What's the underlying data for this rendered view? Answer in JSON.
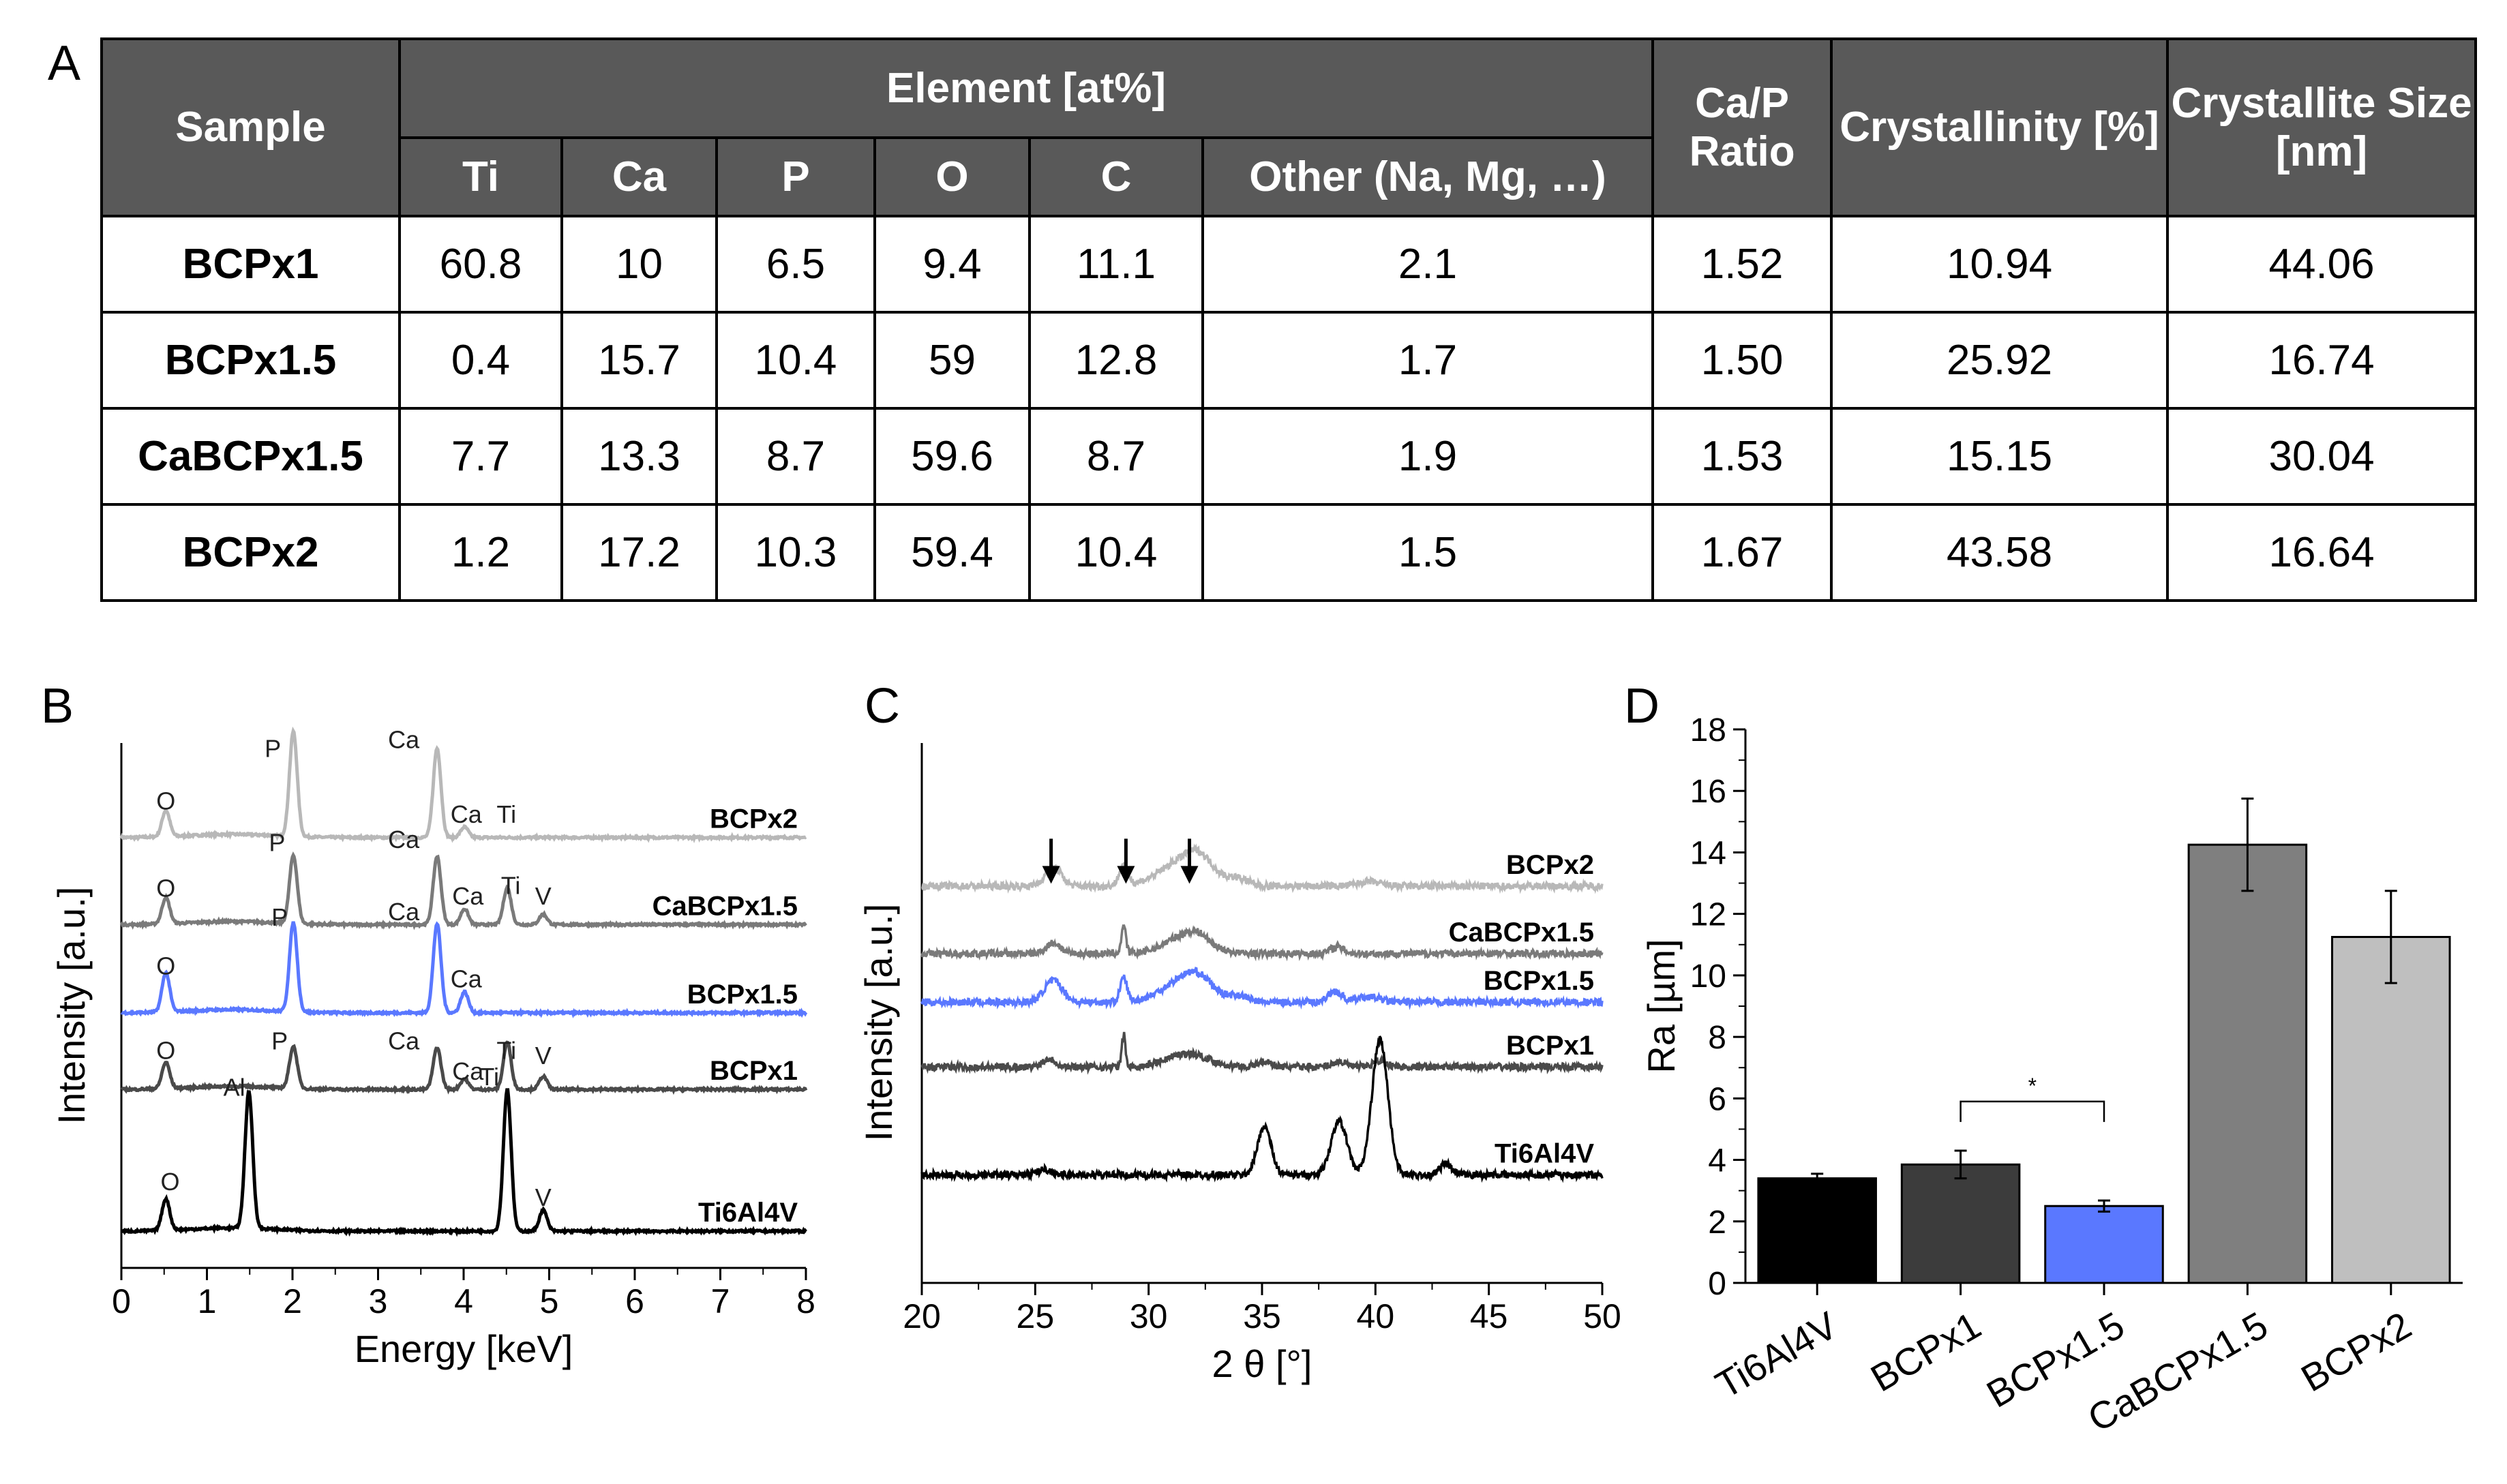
{
  "panels": {
    "a": "A",
    "b": "B",
    "c": "C",
    "d": "D"
  },
  "table": {
    "headers": {
      "sample": "Sample",
      "element": "Element [at%]",
      "elements": [
        "Ti",
        "Ca",
        "P",
        "O",
        "C",
        "Other (Na, Mg, …)"
      ],
      "ca_p": "Ca/P Ratio",
      "crystallinity": "Crystallinity [%]",
      "crystallite": "Crystallite Size [nm]"
    },
    "rows": [
      {
        "sample": "BCPx1",
        "cells": [
          "60.8",
          "10",
          "6.5",
          "9.4",
          "11.1",
          "2.1",
          "1.52",
          "10.94",
          "44.06"
        ]
      },
      {
        "sample": "BCPx1.5",
        "cells": [
          "0.4",
          "15.7",
          "10.4",
          "59",
          "12.8",
          "1.7",
          "1.50",
          "25.92",
          "16.74"
        ]
      },
      {
        "sample": "CaBCPx1.5",
        "cells": [
          "7.7",
          "13.3",
          "8.7",
          "59.6",
          "8.7",
          "1.9",
          "1.53",
          "15.15",
          "30.04"
        ]
      },
      {
        "sample": "BCPx2",
        "cells": [
          "1.2",
          "17.2",
          "10.3",
          "59.4",
          "10.4",
          "1.5",
          "1.67",
          "43.58",
          "16.64"
        ]
      }
    ]
  },
  "chart_data": [
    {
      "id": "B",
      "type": "line",
      "title": "",
      "xlabel": "Energy [keV]",
      "ylabel": "Intensity [a.u.]",
      "xlim": [
        0,
        8
      ],
      "xticks": [
        "0",
        "1",
        "2",
        "3",
        "4",
        "5",
        "6",
        "7",
        "8"
      ],
      "series": [
        {
          "name": "BCPx2",
          "color": "#b8b8b8",
          "baseline": 0.82,
          "peaks": [
            [
              0.52,
              0.05
            ],
            [
              2.01,
              0.2
            ],
            [
              3.69,
              0.17
            ],
            [
              4.01,
              0.02
            ]
          ],
          "labels": [
            {
              "text": "O",
              "x": 0.52,
              "h": 0.035
            },
            {
              "text": "P",
              "x": 1.77,
              "h": 0.135
            },
            {
              "text": "Ca",
              "x": 3.3,
              "h": 0.152
            },
            {
              "text": "Ca",
              "x": 4.03,
              "h": 0.01
            },
            {
              "text": "Ti",
              "x": 4.5,
              "h": 0.01
            }
          ]
        },
        {
          "name": "CaBCPx1.5",
          "color": "#7a7a7a",
          "baseline": 0.654,
          "peaks": [
            [
              0.52,
              0.05
            ],
            [
              2.01,
              0.13
            ],
            [
              3.69,
              0.13
            ],
            [
              4.01,
              0.03
            ],
            [
              4.51,
              0.07
            ],
            [
              4.93,
              0.02
            ]
          ],
          "labels": [
            {
              "text": "O",
              "x": 0.52,
              "h": 0.035
            },
            {
              "text": "P",
              "x": 1.82,
              "h": 0.122
            },
            {
              "text": "Ca",
              "x": 3.3,
              "h": 0.128
            },
            {
              "text": "Ca",
              "x": 4.05,
              "h": 0.02
            },
            {
              "text": "Ti",
              "x": 4.55,
              "h": 0.04
            },
            {
              "text": "V",
              "x": 4.93,
              "h": 0.02
            }
          ]
        },
        {
          "name": "BCPx1.5",
          "color": "#5a78ff",
          "baseline": 0.486,
          "peaks": [
            [
              0.52,
              0.075
            ],
            [
              2.01,
              0.17
            ],
            [
              3.69,
              0.17
            ],
            [
              4.01,
              0.04
            ]
          ],
          "labels": [
            {
              "text": "O",
              "x": 0.52,
              "h": 0.055
            },
            {
              "text": "P",
              "x": 1.85,
              "h": 0.148
            },
            {
              "text": "Ca",
              "x": 3.3,
              "h": 0.158
            },
            {
              "text": "Ca",
              "x": 4.03,
              "h": 0.03
            }
          ]
        },
        {
          "name": "BCPx1",
          "color": "#4a4a4a",
          "baseline": 0.34,
          "peaks": [
            [
              0.52,
              0.05
            ],
            [
              2.01,
              0.08
            ],
            [
              3.69,
              0.08
            ],
            [
              4.01,
              0.02
            ],
            [
              4.51,
              0.09
            ],
            [
              4.93,
              0.025
            ]
          ],
          "labels": [
            {
              "text": "O",
              "x": 0.52,
              "h": 0.04
            },
            {
              "text": "P",
              "x": 1.85,
              "h": 0.058
            },
            {
              "text": "Ca",
              "x": 3.3,
              "h": 0.058
            },
            {
              "text": "Ca",
              "x": 4.05,
              "h": 0.0
            },
            {
              "text": "Ti",
              "x": 4.5,
              "h": 0.04
            },
            {
              "text": "V",
              "x": 4.93,
              "h": 0.03
            }
          ]
        },
        {
          "name": "Ti6Al4V",
          "color": "#000000",
          "baseline": 0.07,
          "peaks": [
            [
              0.52,
              0.06
            ],
            [
              1.49,
              0.26
            ],
            [
              4.51,
              0.27
            ],
            [
              4.93,
              0.04
            ]
          ],
          "labels": [
            {
              "text": "O",
              "x": 0.57,
              "h": 0.06
            },
            {
              "text": "Al",
              "x": 1.32,
              "h": 0.24
            },
            {
              "text": "Ti",
              "x": 4.3,
              "h": 0.26
            },
            {
              "text": "V",
              "x": 4.93,
              "h": 0.03
            }
          ]
        }
      ]
    },
    {
      "id": "C",
      "type": "line",
      "title": "",
      "xlabel": "2 θ [°]",
      "ylabel": "Intensity [a.u.]",
      "xlim": [
        20,
        50
      ],
      "xticks": [
        "20",
        "25",
        "30",
        "35",
        "40",
        "45",
        "50"
      ],
      "arrows_at": [
        25.7,
        29.0,
        31.8
      ],
      "series": [
        {
          "name": "BCPx2",
          "color": "#b8b8b8",
          "baseline": 0.735,
          "peaks": [
            [
              25.8,
              0.035,
              0.35
            ],
            [
              28.9,
              0.035,
              0.2
            ],
            [
              31.7,
              0.05,
              1.1
            ],
            [
              32.2,
              0.02,
              0.5
            ],
            [
              34.0,
              0.01,
              0.4
            ],
            [
              39.7,
              0.008,
              0.5
            ]
          ]
        },
        {
          "name": "CaBCPx1.5",
          "color": "#7a7a7a",
          "baseline": 0.61,
          "peaks": [
            [
              25.8,
              0.02,
              0.3
            ],
            [
              28.9,
              0.05,
              0.1
            ],
            [
              31.7,
              0.035,
              0.9
            ],
            [
              32.2,
              0.01,
              0.4
            ],
            [
              38.3,
              0.012,
              0.3
            ]
          ]
        },
        {
          "name": "BCPx1.5",
          "color": "#5a78ff",
          "baseline": 0.52,
          "peaks": [
            [
              25.8,
              0.04,
              0.4
            ],
            [
              28.9,
              0.045,
              0.15
            ],
            [
              31.7,
              0.045,
              1.0
            ],
            [
              32.2,
              0.015,
              0.5
            ],
            [
              34.0,
              0.01,
              0.4
            ],
            [
              38.2,
              0.02,
              0.3
            ],
            [
              39.7,
              0.01,
              0.5
            ]
          ]
        },
        {
          "name": "BCPx1",
          "color": "#4a4a4a",
          "baseline": 0.4,
          "peaks": [
            [
              25.6,
              0.015,
              0.3
            ],
            [
              28.9,
              0.06,
              0.08
            ],
            [
              31.7,
              0.025,
              0.9
            ],
            [
              35.1,
              0.01,
              0.3
            ],
            [
              38.4,
              0.01,
              0.3
            ],
            [
              40.2,
              0.012,
              0.3
            ]
          ]
        },
        {
          "name": "Ti6Al4V",
          "color": "#000000",
          "baseline": 0.2,
          "peaks": [
            [
              25.4,
              0.01,
              0.3
            ],
            [
              35.1,
              0.09,
              0.3
            ],
            [
              38.4,
              0.1,
              0.35
            ],
            [
              40.2,
              0.25,
              0.35
            ],
            [
              43.1,
              0.02,
              0.25
            ]
          ]
        }
      ]
    },
    {
      "id": "D",
      "type": "bar",
      "title": "",
      "xlabel": "",
      "ylabel": "Ra [µm]",
      "ylim": [
        0,
        18
      ],
      "yticks": [
        "0",
        "2",
        "4",
        "6",
        "8",
        "10",
        "12",
        "14",
        "16",
        "18"
      ],
      "categories": [
        "Ti6Al4V",
        "BCPx1",
        "BCPx1.5",
        "CaBCPx1.5",
        "BCPx2"
      ],
      "values": [
        3.4,
        3.85,
        2.5,
        14.25,
        11.25
      ],
      "errors": [
        0.15,
        0.45,
        0.18,
        1.5,
        1.5
      ],
      "colors": [
        "#000000",
        "#3c3c3c",
        "#5a78ff",
        "#7f7f7f",
        "#bfbfbf"
      ],
      "significance": {
        "from": "BCPx1",
        "to": "BCPx1.5",
        "label": "*",
        "level": 5.9
      }
    }
  ]
}
